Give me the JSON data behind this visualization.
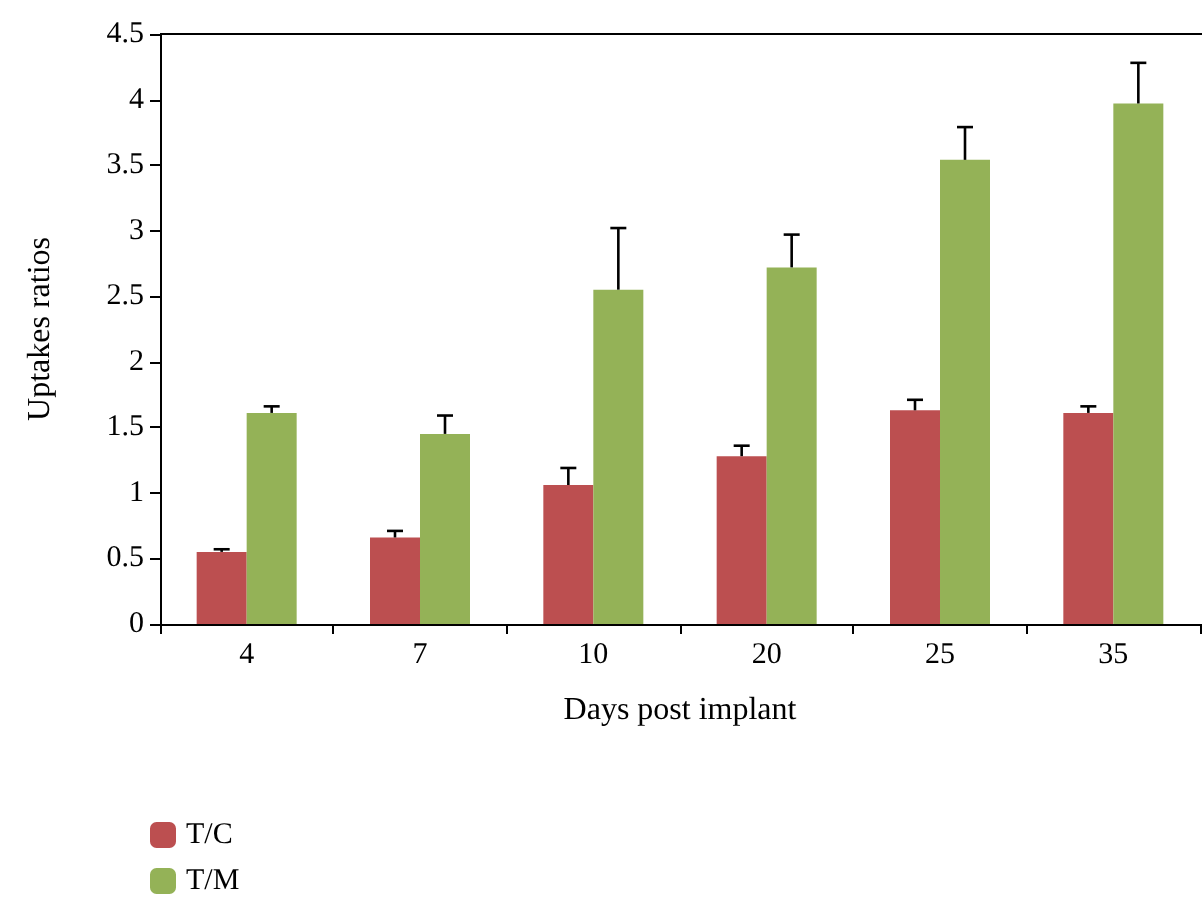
{
  "chart_data": {
    "type": "bar",
    "xlabel": "Days post implant",
    "ylabel": "Uptakes ratios",
    "categories": [
      "4",
      "7",
      "10",
      "20",
      "25",
      "35"
    ],
    "series": [
      {
        "name": "T/C",
        "color": "#bc4f50",
        "values": [
          0.55,
          0.66,
          1.06,
          1.28,
          1.63,
          1.61
        ],
        "errors": [
          0.02,
          0.05,
          0.13,
          0.08,
          0.08,
          0.05
        ]
      },
      {
        "name": "T/M",
        "color": "#94b257",
        "values": [
          1.61,
          1.45,
          2.55,
          2.72,
          3.54,
          3.97
        ],
        "errors": [
          0.05,
          0.14,
          0.47,
          0.25,
          0.25,
          0.31
        ]
      }
    ],
    "ylim": [
      0,
      4.5
    ],
    "yticks": [
      0,
      0.5,
      1,
      1.5,
      2,
      2.5,
      3,
      3.5,
      4,
      4.5
    ],
    "grid": false,
    "legend": "bottom left"
  }
}
